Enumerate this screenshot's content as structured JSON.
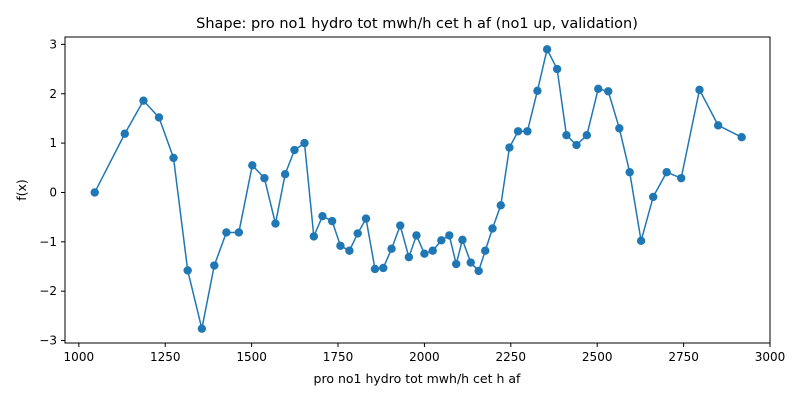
{
  "chart_data": {
    "type": "line",
    "title": "Shape: pro no1 hydro tot mwh/h cet h af (no1 up, validation)",
    "xlabel": "pro no1 hydro tot mwh/h cet h af",
    "ylabel": "f(x)",
    "xlim": [
      960,
      3000
    ],
    "ylim": [
      -3.05,
      3.15
    ],
    "xticks": [
      1000,
      1250,
      1500,
      1750,
      2000,
      2250,
      2500,
      2750,
      3000
    ],
    "yticks": [
      -3,
      -2,
      -1,
      0,
      1,
      2,
      3
    ],
    "grid": false,
    "legend": "none",
    "marker": "circle",
    "color": "#1f77b4",
    "series": [
      {
        "x": [
          1046,
          1133,
          1187,
          1232,
          1274,
          1315,
          1356,
          1392,
          1427,
          1463,
          1502,
          1537,
          1569,
          1597,
          1624,
          1653,
          1680,
          1705,
          1733,
          1757,
          1783,
          1807,
          1831,
          1857,
          1881,
          1905,
          1930,
          1955,
          1977,
          2000,
          2024,
          2049,
          2072,
          2092,
          2110,
          2134,
          2157,
          2176,
          2197,
          2221,
          2246,
          2271,
          2298,
          2327,
          2355,
          2384,
          2411,
          2440,
          2470,
          2503,
          2532,
          2564,
          2594,
          2627,
          2662,
          2701,
          2743,
          2796,
          2850,
          2918
        ],
        "y": [
          0.0,
          1.19,
          1.86,
          1.52,
          0.7,
          -1.58,
          -2.76,
          -1.48,
          -0.81,
          -0.81,
          0.55,
          0.29,
          -0.63,
          0.37,
          0.86,
          1.0,
          -0.89,
          -0.48,
          -0.58,
          -1.08,
          -1.18,
          -0.83,
          -0.53,
          -1.55,
          -1.53,
          -1.14,
          -0.67,
          -1.31,
          -0.87,
          -1.24,
          -1.18,
          -0.97,
          -0.87,
          -1.45,
          -0.96,
          -1.42,
          -1.59,
          -1.18,
          -0.73,
          -0.26,
          0.91,
          1.24,
          1.24,
          2.06,
          2.9,
          2.5,
          1.16,
          0.96,
          1.16,
          2.1,
          2.05,
          1.3,
          0.41,
          -0.98,
          -0.09,
          0.41,
          0.29,
          2.08,
          1.36,
          1.12
        ]
      }
    ]
  }
}
